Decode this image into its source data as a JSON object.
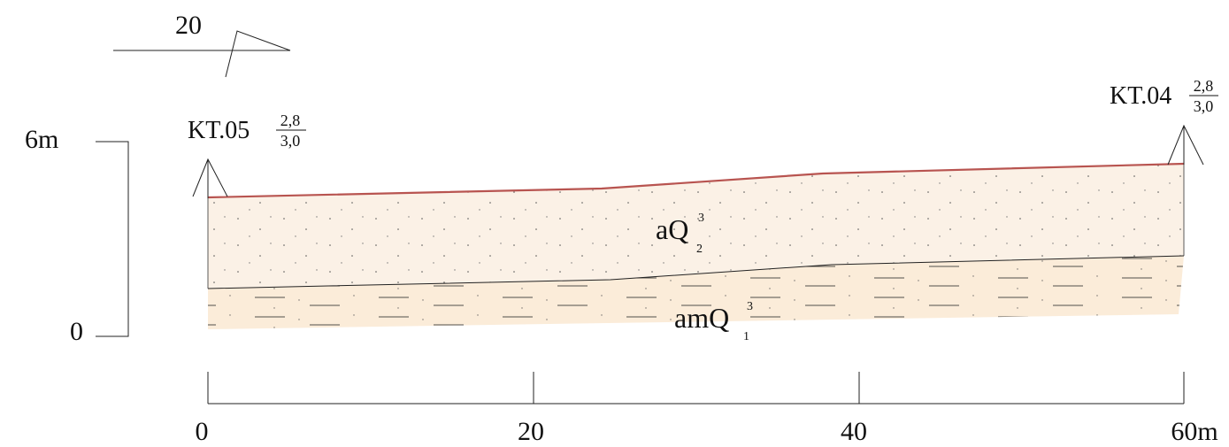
{
  "orientation": {
    "label": "20"
  },
  "vertical_scale": {
    "top_label": "6m",
    "bottom_label": "0"
  },
  "boreholes": [
    {
      "name": "KT.05",
      "num": "2,8",
      "den": "3,0"
    },
    {
      "name": "KT.04",
      "num": "2,8",
      "den": "3,0"
    }
  ],
  "layers": {
    "upper": {
      "base": "aQ",
      "sup": "3",
      "sub": "2",
      "color": "#fbf1e6"
    },
    "lower": {
      "base": "amQ",
      "sup": "3",
      "sub": "1",
      "color": "#fbecd9"
    },
    "surface_color": "#b85450"
  },
  "horizontal_scale": {
    "ticks": [
      "0",
      "20",
      "40",
      "60m"
    ]
  }
}
